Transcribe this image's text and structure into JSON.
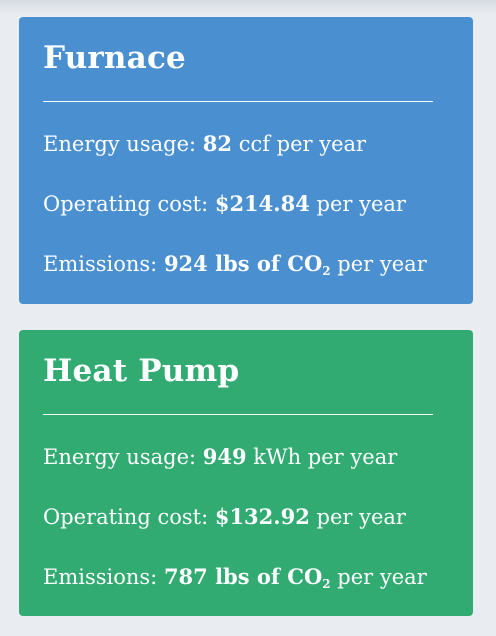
{
  "cards": [
    {
      "title": "Furnace",
      "energy_label": "Energy usage:",
      "energy_value": "82",
      "energy_unit": "ccf per year",
      "cost_label": "Operating cost:",
      "cost_value": "$214.84",
      "cost_unit": "per year",
      "emissions_label": "Emissions:",
      "emissions_value": "924 lbs of CO",
      "emissions_sub": "2",
      "emissions_unit": "per year",
      "color": "#4a90d1"
    },
    {
      "title": "Heat Pump",
      "energy_label": "Energy usage:",
      "energy_value": "949",
      "energy_unit": "kWh per year",
      "cost_label": "Operating cost:",
      "cost_value": "$132.92",
      "cost_unit": "per year",
      "emissions_label": "Emissions:",
      "emissions_value": "787 lbs of CO",
      "emissions_sub": "2",
      "emissions_unit": "per year",
      "color": "#31ab72"
    }
  ]
}
